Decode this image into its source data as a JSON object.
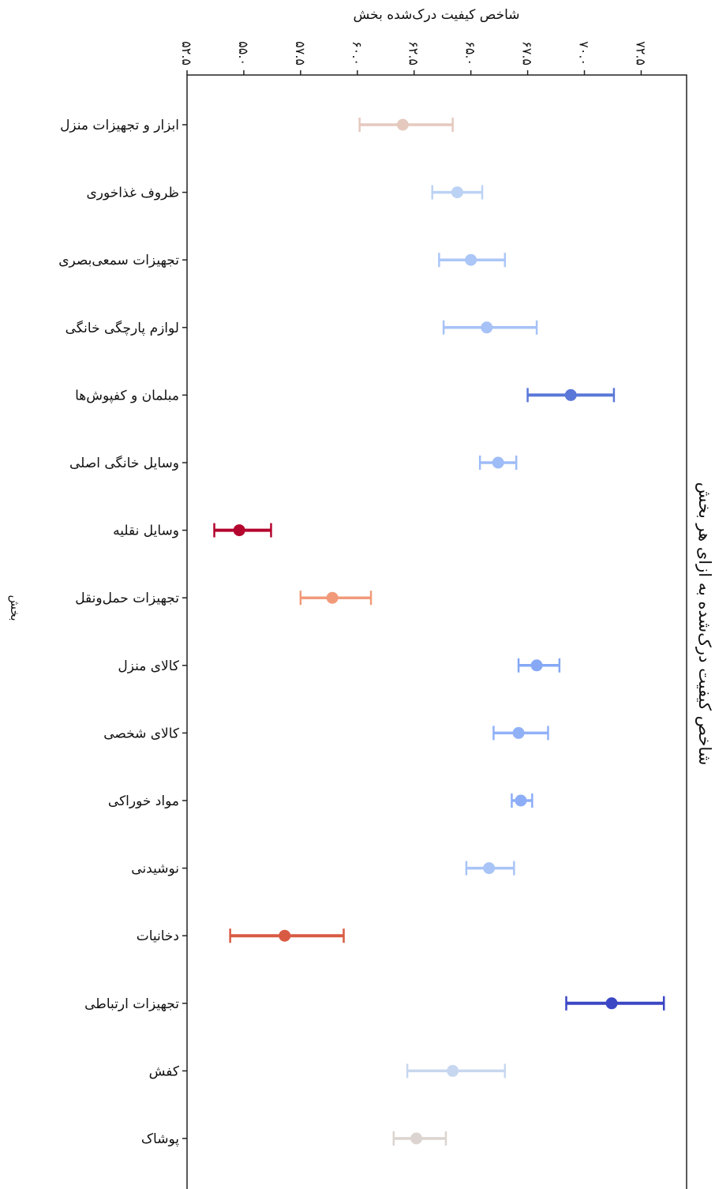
{
  "chart_data": {
    "type": "errorbar",
    "title": "شاخص کیفیت درک‌شده به ازای هر بخش",
    "xlabel": "شاخص کیفیت درک‌شده بخش",
    "ylabel": "بخش",
    "xlim": [
      52.5,
      74.5
    ],
    "xticks": [
      52.5,
      55.0,
      57.5,
      60.0,
      62.5,
      65.0,
      67.5,
      70.0,
      72.5
    ],
    "xtick_labels": [
      "۵۲.۵",
      "۵۵.۰",
      "۵۷.۵",
      "۶۰.۰",
      "۶۲.۵",
      "۶۵.۰",
      "۶۷.۵",
      "۷۰.۰",
      "۷۲.۵"
    ],
    "grid": false,
    "categories": [
      "ابزار و تجهیزات منزل",
      "ظروف غذاخوری",
      "تجهیزات سمعی‌بصری",
      "لوازم پارچگی خانگی",
      "مبلمان و کفپوش‌ها",
      "وسایل خانگی اصلی",
      "وسایل نقلیه",
      "تجهیزات حمل‌ونقل",
      "کالای منزل",
      "کالای شخصی",
      "مواد خوراکی",
      "نوشیدنی",
      "دخانیات",
      "تجهیزات ارتباطی",
      "کفش",
      "پوشاک"
    ],
    "values": [
      62.0,
      64.4,
      65.0,
      65.7,
      69.4,
      66.2,
      54.8,
      58.9,
      67.9,
      67.1,
      67.2,
      65.8,
      56.8,
      71.2,
      64.2,
      62.6
    ],
    "lower": [
      60.1,
      63.3,
      63.6,
      63.8,
      67.5,
      65.4,
      53.7,
      57.5,
      67.1,
      66.0,
      66.8,
      64.8,
      54.4,
      69.2,
      62.2,
      61.6
    ],
    "upper": [
      64.2,
      65.5,
      66.5,
      67.9,
      71.3,
      67.0,
      56.2,
      60.6,
      68.9,
      68.4,
      67.7,
      66.9,
      59.4,
      73.5,
      66.5,
      63.9
    ],
    "colors": [
      "#e5c9bf",
      "#bcd2f5",
      "#abc6f7",
      "#a6c2f7",
      "#5a78d8",
      "#9ebcf7",
      "#b4052e",
      "#f19a7a",
      "#86a8f5",
      "#91b1f7",
      "#8daef7",
      "#a9c4f7",
      "#d95a43",
      "#3b47c4",
      "#c7d7ef",
      "#dcd4d0"
    ]
  }
}
